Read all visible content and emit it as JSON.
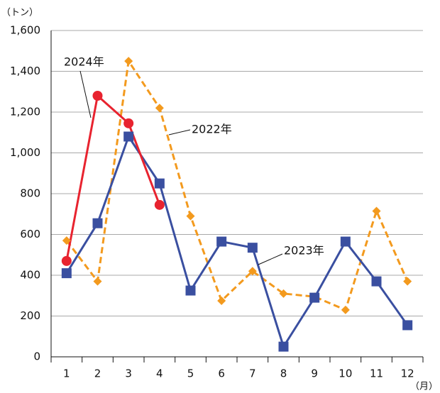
{
  "chart_data": {
    "type": "line",
    "y_label": "（トン）",
    "x_label": "（月）",
    "categories": [
      "1",
      "2",
      "3",
      "4",
      "5",
      "6",
      "7",
      "8",
      "9",
      "10",
      "11",
      "12"
    ],
    "series": [
      {
        "name": "2022年",
        "color": "#f39a1e",
        "marker": "diamond",
        "dashed": true,
        "values": [
          570,
          370,
          1450,
          1220,
          690,
          275,
          420,
          310,
          295,
          230,
          715,
          370
        ]
      },
      {
        "name": "2023年",
        "color": "#3a4fa0",
        "marker": "square",
        "dashed": false,
        "values": [
          410,
          655,
          1080,
          850,
          325,
          565,
          535,
          50,
          290,
          565,
          370,
          155
        ]
      },
      {
        "name": "2024年",
        "color": "#e8232f",
        "marker": "circle",
        "dashed": false,
        "values": [
          470,
          1280,
          1145,
          745,
          null,
          null,
          null,
          null,
          null,
          null,
          null,
          null
        ]
      }
    ],
    "ylim": [
      0,
      1600
    ],
    "yticks": [
      0,
      200,
      400,
      600,
      800,
      {
        "value": 1000,
        "label": "1,000"
      },
      {
        "value": 1200,
        "label": "1,200"
      },
      {
        "value": 1400,
        "label": "1,400"
      },
      {
        "value": 1600,
        "label": "1,600"
      }
    ],
    "grid": true
  }
}
